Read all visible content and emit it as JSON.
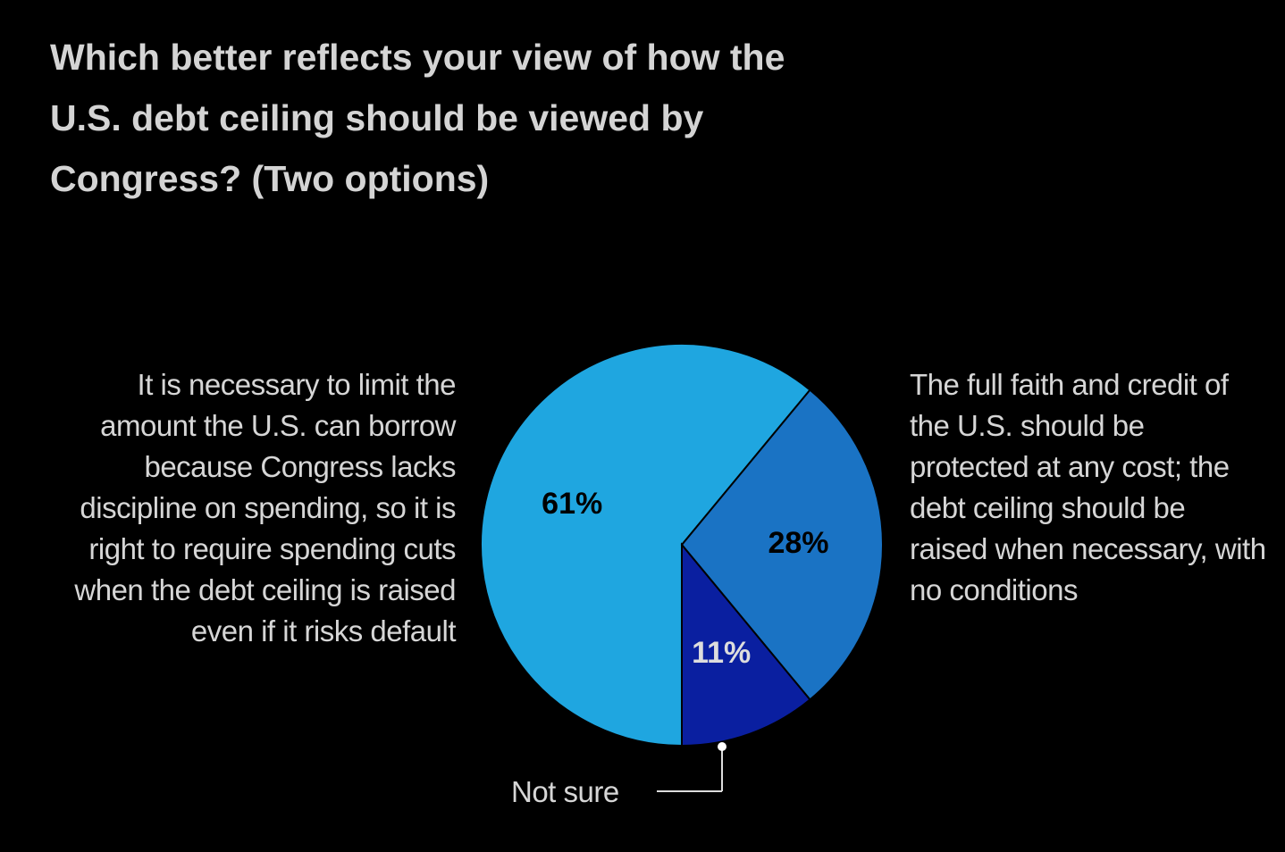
{
  "chart_data": {
    "type": "pie",
    "title": "Which better reflects your view of how the U.S. debt ceiling should be viewed by Congress? (Two options)",
    "categories": [
      "It is necessary to limit the amount the U.S. can borrow because Congress lacks discipline on spending, so it is right to require spending cuts when the debt ceiling is raised even if it risks default",
      "The full faith and credit of the U.S. should be protected at any cost; the debt ceiling should be raised when necessary, with no conditions",
      "Not sure"
    ],
    "values": [
      61,
      28,
      11
    ],
    "value_labels": [
      "61%",
      "28%",
      "11%"
    ],
    "colors": [
      "#1fa6e0",
      "#1a73c4",
      "#0a1fa0"
    ]
  }
}
